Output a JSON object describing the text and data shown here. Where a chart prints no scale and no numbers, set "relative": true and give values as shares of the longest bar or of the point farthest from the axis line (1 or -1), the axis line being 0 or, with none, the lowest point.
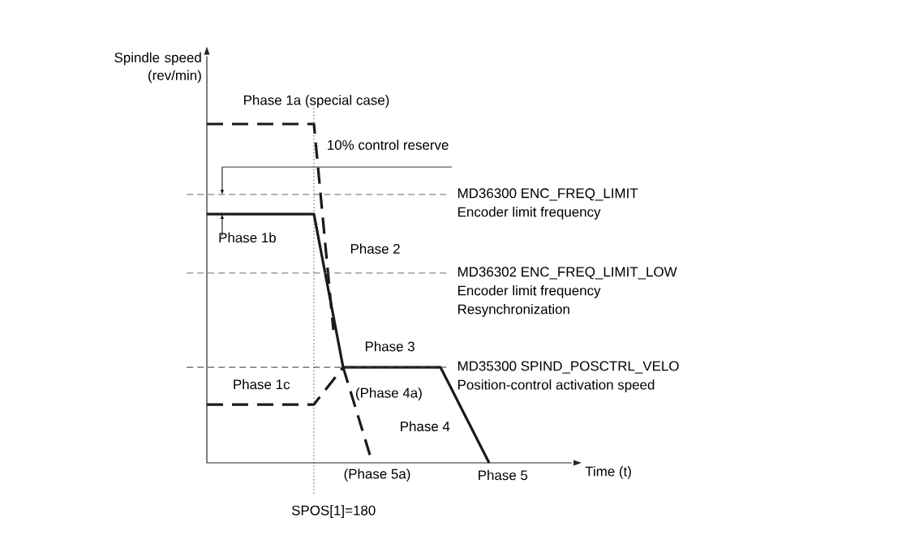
{
  "chart_data": {
    "type": "line",
    "relative": true,
    "ylabel": "Spindle speed (rev/min)",
    "categories": [
      null,
      null,
      null,
      null,
      null,
      null,
      null,
      null,
      null,
      null,
      null,
      null,
      null,
      null,
      null,
      null,
      null,
      null,
      null,
      null,
      null,
      null,
      null,
      null,
      null,
      null,
      null,
      null,
      null,
      null
    ],
    "series": [
      {
        "color": "#1a1a1a",
        "line_style": "dashed",
        "values": [
          1,
          1,
          1,
          1,
          1,
          1,
          1,
          1,
          1,
          1,
          1,
          1,
          0.696,
          0.392,
          null,
          null,
          null,
          null,
          null,
          null,
          null,
          null,
          null,
          null,
          null,
          null,
          null,
          null,
          null,
          null
        ]
      },
      {
        "color": "#1a1a1a",
        "line_style": "solid",
        "values": [
          0.734,
          0.734,
          0.734,
          0.734,
          0.734,
          0.734,
          0.734,
          0.734,
          0.734,
          0.734,
          0.734,
          0.734,
          0.583,
          0.433,
          0.282,
          0.282,
          0.282,
          0.282,
          0.282,
          0.282,
          0.282,
          0.282,
          0.282,
          0.282,
          0.282,
          0.226,
          0.169,
          0.113,
          0.056,
          0
        ]
      },
      {
        "color": "#1a1a1a",
        "line_style": "dashed",
        "values": [
          0.172,
          0.172,
          0.172,
          0.172,
          0.172,
          0.172,
          0.172,
          0.172,
          0.172,
          0.172,
          0.172,
          0.172,
          0.209,
          0.245,
          0.282,
          null,
          null,
          null,
          null,
          null,
          null,
          null,
          null,
          null,
          null,
          null,
          null,
          null,
          null,
          null
        ]
      },
      {
        "color": "#1a1a1a",
        "line_style": "dashed",
        "values": [
          null,
          null,
          null,
          null,
          null,
          null,
          null,
          null,
          null,
          null,
          null,
          null,
          null,
          null,
          0.282,
          0.188,
          0.094,
          0,
          null,
          null,
          null,
          null,
          null,
          null,
          null,
          null,
          null,
          null,
          null,
          null
        ]
      }
    ],
    "ref_lines": [
      {
        "axis": "y",
        "value": 0.873,
        "label": "10% control reserve",
        "color": "#333333",
        "line_style": "solid"
      },
      {
        "axis": "y",
        "value": 0.792,
        "label": "MD36300 ENC_FREQ_LIMIT",
        "color": "#666666",
        "line_style": "dashed"
      },
      {
        "axis": "y",
        "value": 0.56,
        "label": "MD36302 ENC_FREQ_LIMIT_LOW",
        "color": "#666666",
        "line_style": "dashed"
      },
      {
        "axis": "y",
        "value": 0.282,
        "label": "MD35300 SPIND_POSCTRL_VELO",
        "color": "#333333",
        "line_style": "dashed"
      }
    ],
    "annotations": [
      "Phase 1a (special case)",
      "Phase 1b",
      "Phase 2",
      "Phase 3",
      "Phase 1c",
      "(Phase 4a)",
      "Phase 4",
      "(Phase 5a)",
      "Phase 5",
      "Encoder limit frequency",
      "Encoder limit frequency",
      "Resynchronization",
      "Position-control activation speed",
      "SPOS[1]=180",
      "Time (t)"
    ]
  }
}
